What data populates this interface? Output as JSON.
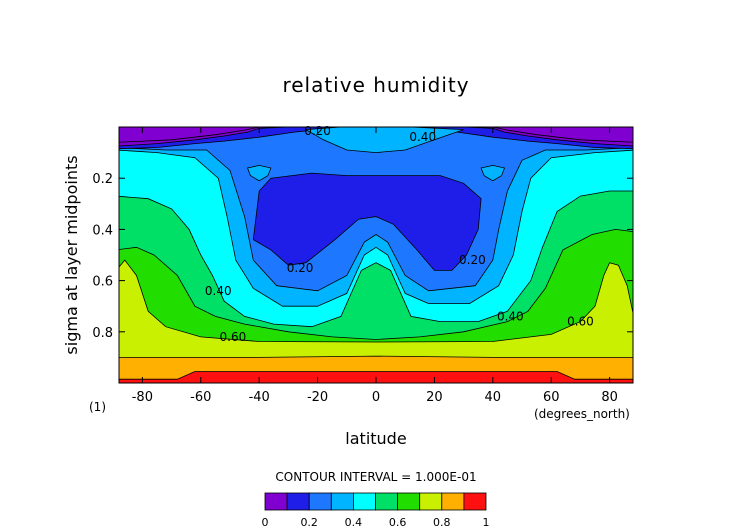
{
  "chart_data": {
    "type": "heatmap",
    "title": "relative humidity",
    "xlabel": "latitude",
    "ylabel": "sigma at layer midpoints",
    "x_unit": "(degrees_north)",
    "y_unit": "(1)",
    "xlim": [
      -88,
      88
    ],
    "ylim": [
      1.0,
      0.0
    ],
    "x_ticks": [
      -80,
      -60,
      -40,
      -20,
      0,
      20,
      40,
      60,
      80
    ],
    "x_tick_labels": [
      "-80",
      "-60",
      "-40",
      "-20",
      "0",
      "20",
      "40",
      "60",
      "80"
    ],
    "y_ticks": [
      0.2,
      0.4,
      0.6,
      0.8
    ],
    "y_tick_labels": [
      "0.2",
      "0.4",
      "0.6",
      "0.8"
    ],
    "contour_interval_label": "CONTOUR INTERVAL = 1.000E-01",
    "contour_levels": [
      0,
      0.1,
      0.2,
      0.3,
      0.4,
      0.5,
      0.6,
      0.7,
      0.8,
      0.9,
      1.0
    ],
    "colorbar": {
      "colors": [
        "#7f00d0",
        "#1e1ee8",
        "#1e78ff",
        "#00b4ff",
        "#00ffff",
        "#00e066",
        "#22dd00",
        "#c8f000",
        "#ffb000",
        "#ff1010",
        "#ff9a9a"
      ],
      "tick_values": [
        0,
        0.2,
        0.4,
        0.6,
        0.8,
        1
      ],
      "tick_labels": [
        "0",
        "0.2",
        "0.4",
        "0.6",
        "0.8",
        "1"
      ]
    },
    "contour_labels": [
      {
        "text": "0.20",
        "lat": -20,
        "sigma": 0.015
      },
      {
        "text": "0.40",
        "lat": 16,
        "sigma": 0.04
      },
      {
        "text": "0.20",
        "lat": -26,
        "sigma": 0.55
      },
      {
        "text": "0.20",
        "lat": 33,
        "sigma": 0.52
      },
      {
        "text": "0.40",
        "lat": -54,
        "sigma": 0.64
      },
      {
        "text": "0.40",
        "lat": 46,
        "sigma": 0.74
      },
      {
        "text": "0.60",
        "lat": -49,
        "sigma": 0.82
      },
      {
        "text": "0.60",
        "lat": 70,
        "sigma": 0.76
      }
    ],
    "grid": false,
    "legend": "bottom colorbar"
  }
}
